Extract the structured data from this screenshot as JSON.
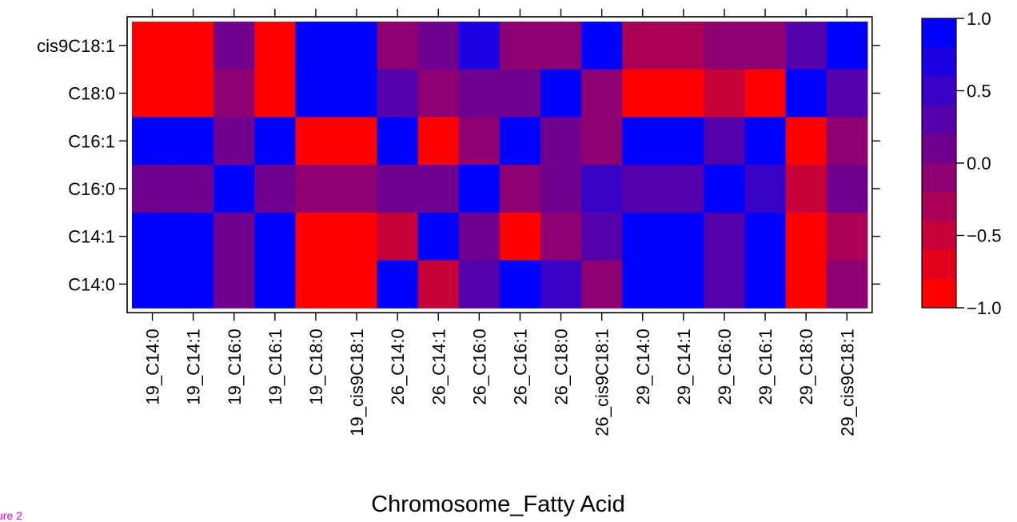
{
  "figure_tag": "ure 2",
  "chart_data": {
    "type": "heatmap",
    "title": "",
    "xlabel": "Chromosome_Fatty Acid",
    "ylabel": "",
    "columns": [
      "19_C14:0",
      "19_C14:1",
      "19_C16:0",
      "19_C16:1",
      "19_C18:0",
      "19_cis9C18:1",
      "26_C14:0",
      "26_C14:1",
      "26_C16:0",
      "26_C16:1",
      "26_C18:0",
      "26_cis9C18:1",
      "29_C14:0",
      "29_C14:1",
      "29_C16:0",
      "29_C16:1",
      "29_C18:0",
      "29_cis9C18:1"
    ],
    "rows": [
      "cis9C18:1",
      "C18:0",
      "C16:1",
      "C16:0",
      "C14:1",
      "C14:0"
    ],
    "values": [
      [
        -1.0,
        -1.0,
        0.0,
        -1.0,
        1.0,
        1.0,
        -0.05,
        0.1,
        0.6,
        -0.05,
        -0.05,
        1.0,
        -0.3,
        -0.3,
        -0.1,
        -0.1,
        0.35,
        1.0
      ],
      [
        -1.0,
        -1.0,
        -0.05,
        -1.0,
        1.0,
        1.0,
        0.35,
        -0.05,
        0.15,
        0.1,
        1.0,
        -0.1,
        -1.0,
        -1.0,
        -0.6,
        -1.0,
        1.0,
        0.3
      ],
      [
        1.0,
        1.0,
        0.1,
        1.0,
        -1.0,
        -1.0,
        0.8,
        -1.0,
        -0.15,
        1.0,
        0.1,
        -0.05,
        1.0,
        1.0,
        0.35,
        1.0,
        -1.0,
        -0.05
      ],
      [
        0.1,
        0.1,
        1.0,
        0.1,
        -0.05,
        -0.05,
        0.15,
        0.15,
        1.0,
        -0.15,
        0.15,
        0.45,
        0.35,
        0.35,
        1.0,
        0.45,
        -0.5,
        0.1
      ],
      [
        1.0,
        1.0,
        0.1,
        1.0,
        -1.0,
        -1.0,
        -0.6,
        1.0,
        0.1,
        -1.0,
        -0.05,
        0.2,
        1.0,
        1.0,
        0.3,
        1.0,
        -1.0,
        -0.25
      ],
      [
        1.0,
        1.0,
        0.1,
        1.0,
        -1.0,
        -1.0,
        1.0,
        -0.6,
        0.2,
        0.85,
        0.4,
        -0.1,
        1.0,
        1.0,
        0.3,
        1.0,
        -1.0,
        -0.2
      ]
    ],
    "colorbar": {
      "min": -1.0,
      "max": 1.0,
      "levels": 10,
      "low_color": "#ff0000",
      "high_color": "#0000ff",
      "ticks": [
        1.0,
        0.5,
        0.0,
        -0.5,
        -1.0
      ],
      "tick_labels": [
        "1.0",
        "0.5",
        "0.0",
        "−0.5",
        "−1.0"
      ]
    }
  }
}
